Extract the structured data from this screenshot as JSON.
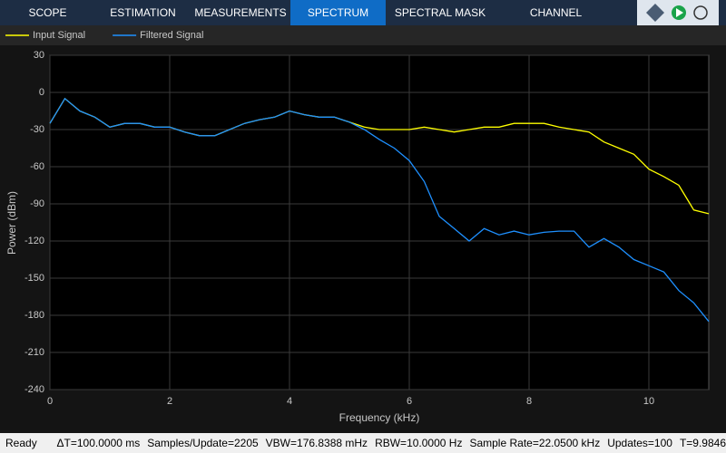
{
  "toolbar": {
    "tabs": [
      "SCOPE",
      "ESTIMATION",
      "MEASUREMENTS",
      "SPECTRUM",
      "SPECTRAL MASK",
      "CHANNEL MEASUREMENTS"
    ],
    "active_tab": 3
  },
  "chart_data": {
    "type": "line",
    "xlabel": "Frequency (kHz)",
    "ylabel": "Power (dBm)",
    "x": [
      0,
      0.25,
      0.5,
      0.75,
      1,
      1.25,
      1.5,
      1.75,
      2,
      2.25,
      2.5,
      2.75,
      3,
      3.25,
      3.5,
      3.75,
      4,
      4.25,
      4.5,
      4.75,
      5,
      5.25,
      5.5,
      5.75,
      6,
      6.25,
      6.5,
      6.75,
      7,
      7.25,
      7.5,
      7.75,
      8,
      8.25,
      8.5,
      8.75,
      9,
      9.25,
      9.5,
      9.75,
      10,
      10.25,
      10.5,
      10.75,
      11
    ],
    "series": [
      {
        "name": "Input Signal",
        "color": "#ffff00",
        "values": [
          -25,
          -5,
          -15,
          -20,
          -28,
          -25,
          -25,
          -28,
          -28,
          -32,
          -35,
          -35,
          -30,
          -25,
          -22,
          -20,
          -15,
          -18,
          -20,
          -20,
          -24,
          -28,
          -30,
          -30,
          -30,
          -28,
          -30,
          -32,
          -30,
          -28,
          -28,
          -25,
          -25,
          -25,
          -28,
          -30,
          -32,
          -40,
          -45,
          -50,
          -62,
          -68,
          -75,
          -95,
          -98
        ]
      },
      {
        "name": "Filtered Signal",
        "color": "#1e90ff",
        "values": [
          -25,
          -5,
          -15,
          -20,
          -28,
          -25,
          -25,
          -28,
          -28,
          -32,
          -35,
          -35,
          -30,
          -25,
          -22,
          -20,
          -15,
          -18,
          -20,
          -20,
          -24,
          -30,
          -38,
          -45,
          -55,
          -72,
          -100,
          -110,
          -120,
          -110,
          -115,
          -112,
          -115,
          -113,
          -112,
          -112,
          -125,
          -118,
          -125,
          -135,
          -140,
          -145,
          -160,
          -170,
          -185
        ]
      }
    ],
    "xlim": [
      0,
      11
    ],
    "xticks": [
      0,
      2,
      4,
      6,
      8,
      10
    ],
    "ylim": [
      -240,
      30
    ],
    "yticks": [
      30,
      0,
      -30,
      -60,
      -90,
      -120,
      -150,
      -180,
      -210,
      -240
    ],
    "grid": true
  },
  "status": [
    "Ready",
    "ΔT=100.0000 ms",
    "Samples/Update=2205",
    "VBW=176.8388 mHz",
    "RBW=10.0000 Hz",
    "Sample Rate=22.0500 kHz",
    "Updates=100",
    "T=9.9846"
  ]
}
